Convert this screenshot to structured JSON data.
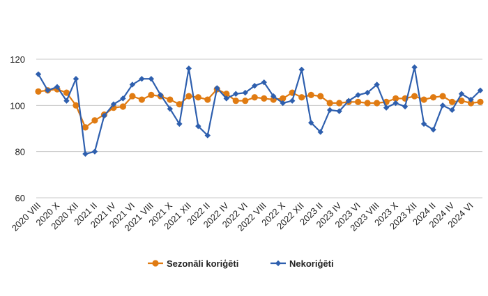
{
  "chart_data": {
    "type": "line",
    "title": "",
    "xlabel": "",
    "ylabel": "",
    "ylim": [
      60,
      125
    ],
    "yticks": [
      60,
      80,
      100,
      120
    ],
    "grid": true,
    "legend_position": "bottom",
    "x": [
      "2020 VIII",
      "2020 IX",
      "2020 X",
      "2020 XI",
      "2020 XII",
      "2021 I",
      "2021 II",
      "2021 III",
      "2021 IV",
      "2021 V",
      "2021 VI",
      "2021 VII",
      "2021 VIII",
      "2021 IX",
      "2021 X",
      "2021 XI",
      "2021 XII",
      "2022 I",
      "2022 II",
      "2022 III",
      "2022 IV",
      "2022 V",
      "2022 VI",
      "2022 VII",
      "2022 VIII",
      "2022 IX",
      "2022 X",
      "2022 XI",
      "2022 XII",
      "2023 I",
      "2023 II",
      "2023 III",
      "2023 IV",
      "2023 V",
      "2023 VI",
      "2023 VII",
      "2023 VIII",
      "2023 IX",
      "2023 X",
      "2023 XI",
      "2023 XII",
      "2024 I",
      "2024 II",
      "2024 III",
      "2024 IV",
      "2024 V",
      "2024 VI",
      "2024 VII"
    ],
    "x_tick_labels": [
      "2020 VIII",
      "2020 X",
      "2020 XII",
      "2021 II",
      "2021 IV",
      "2021 VI",
      "2021 VIII",
      "2021 X",
      "2021 XII",
      "2022 II",
      "2022 IV",
      "2022 VI",
      "2022 VIII",
      "2022 X",
      "2022 XII",
      "2023 II",
      "2023 IV",
      "2023 VI",
      "2023 VIII",
      "2023 X",
      "2023 XII",
      "2024 II",
      "2024 IV",
      "2024 VI"
    ],
    "series": [
      {
        "name": "Sezonāli koriģēti",
        "color": "#E07B12",
        "marker": "circle",
        "values": [
          106,
          106.5,
          107,
          105.5,
          100,
          90.5,
          93.5,
          96,
          99,
          99.5,
          104,
          102.5,
          104.5,
          104,
          102.5,
          100.5,
          104,
          103.5,
          102.5,
          107,
          105,
          102,
          102,
          103.5,
          103,
          102.5,
          103,
          105.5,
          103.5,
          104.5,
          104,
          101,
          101,
          101.5,
          101.5,
          101,
          101,
          101.5,
          103,
          103,
          104,
          102.5,
          103.5,
          104,
          101.5,
          102,
          101,
          101.5
        ]
      },
      {
        "name": "Nekoriģēti",
        "color": "#2E5FAE",
        "marker": "diamond",
        "values": [
          113.5,
          106.5,
          108,
          102,
          111.5,
          79,
          80,
          95.5,
          100.5,
          103,
          109,
          111.5,
          111.5,
          104.5,
          98.5,
          92,
          116,
          91,
          87,
          107.5,
          103,
          105,
          105.5,
          108.5,
          110,
          104,
          101,
          102,
          115.5,
          92.5,
          88.5,
          98,
          97.5,
          102,
          104.5,
          105.5,
          109,
          99,
          101,
          99.5,
          116.5,
          92,
          89.5,
          100,
          98,
          105,
          102.5,
          106.5
        ]
      }
    ]
  }
}
